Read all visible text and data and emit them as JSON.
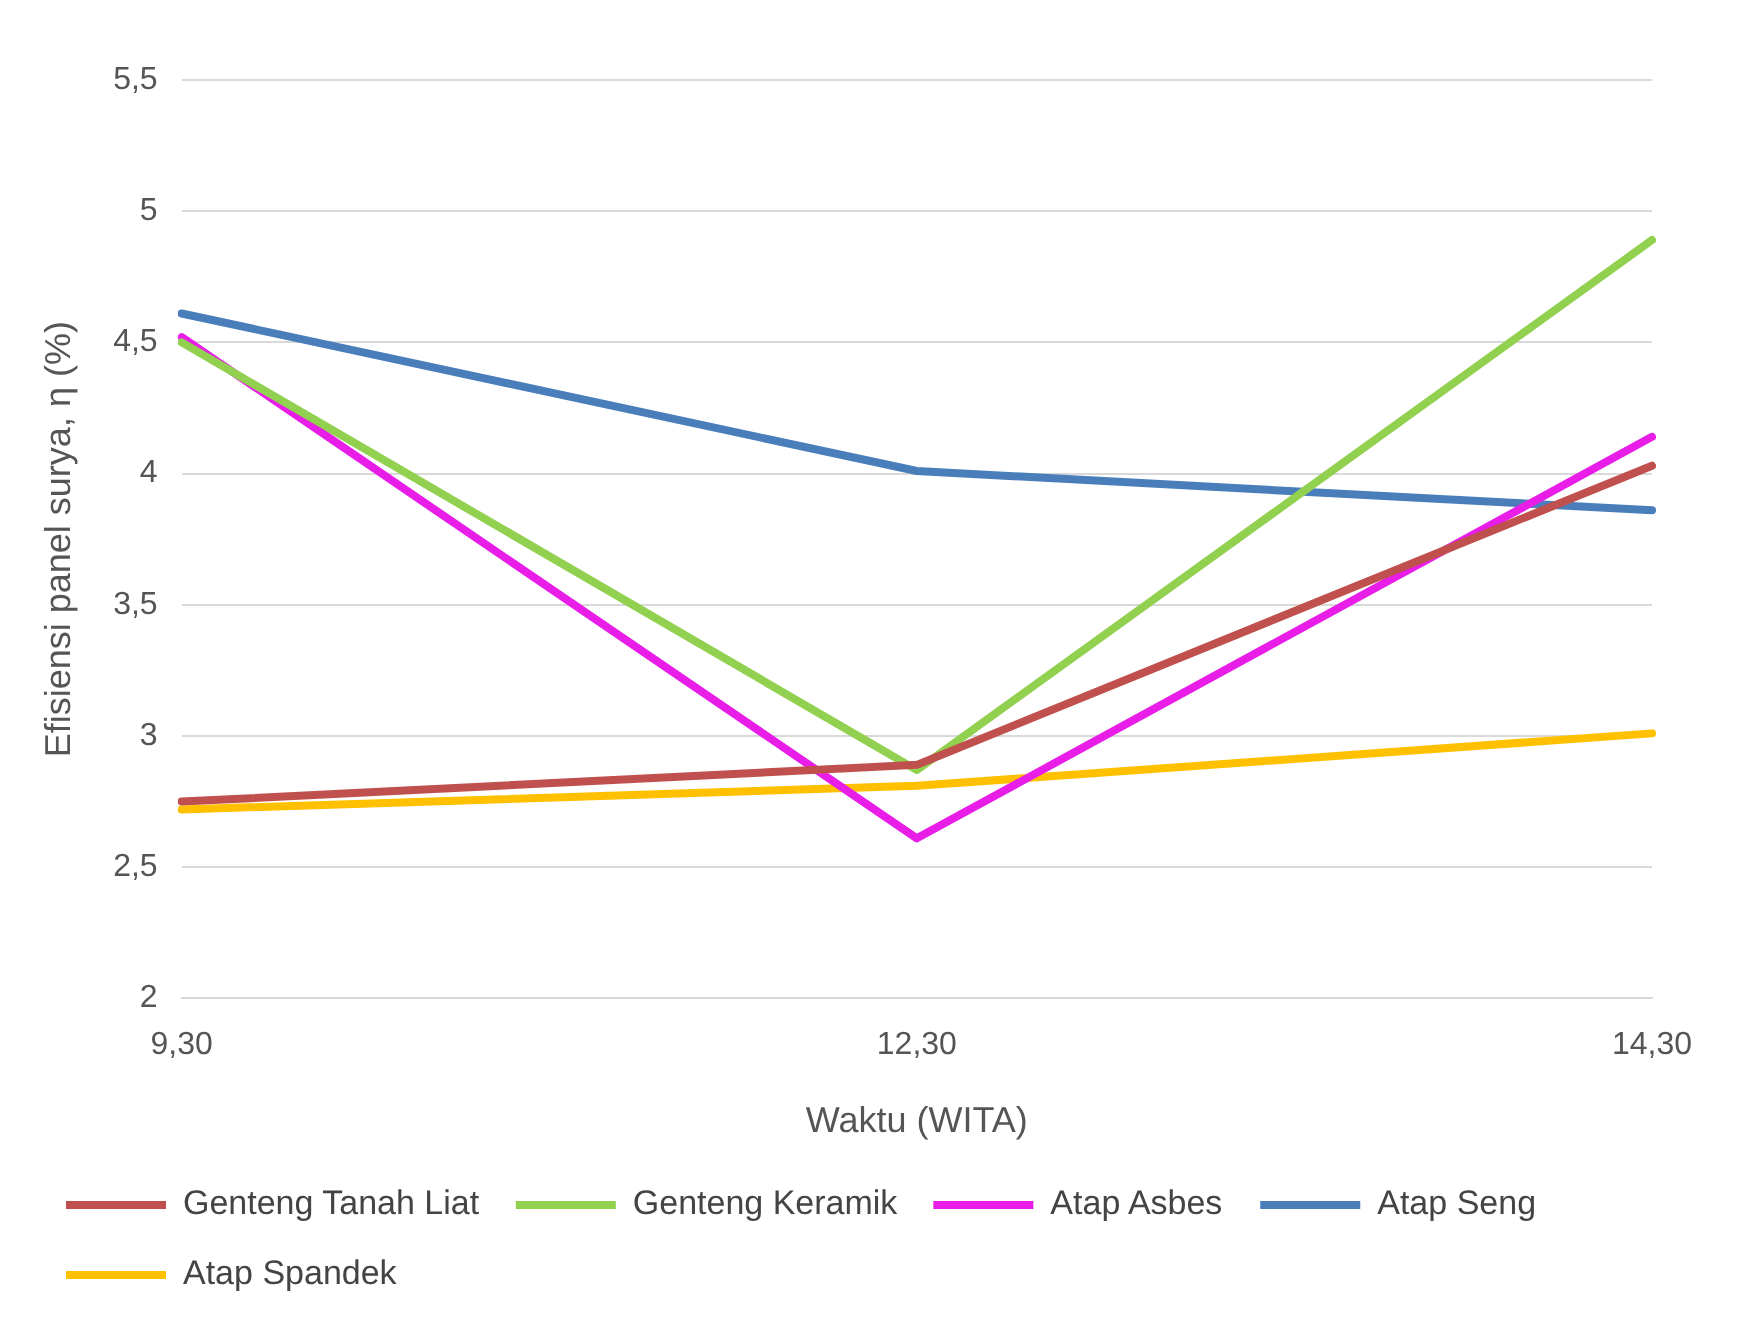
{
  "chart_data": {
    "type": "line",
    "xlabel": "Waktu (WITA)",
    "ylabel": "Efisiensi panel surya, η (%)",
    "categories": [
      "9,30",
      "12,30",
      "14,30"
    ],
    "series": [
      {
        "name": "Genteng Tanah Liat",
        "color": "#c0504d",
        "values": [
          2.75,
          2.89,
          4.03
        ]
      },
      {
        "name": "Genteng Keramik",
        "color": "#92d050",
        "values": [
          4.5,
          2.87,
          4.89
        ]
      },
      {
        "name": "Atap Asbes",
        "color": "#e81ee8",
        "values": [
          4.52,
          2.61,
          4.14
        ]
      },
      {
        "name": "Atap Seng",
        "color": "#4a7ebb",
        "values": [
          4.61,
          4.01,
          3.86
        ]
      },
      {
        "name": "Atap Spandek",
        "color": "#ffc000",
        "values": [
          2.72,
          2.81,
          3.01
        ]
      }
    ],
    "ylim": [
      2,
      5.5
    ],
    "yticks": [
      2,
      {
        "value": 2.5,
        "label": "2,5"
      },
      3,
      {
        "value": 3.5,
        "label": "3,5"
      },
      4,
      {
        "value": 4.5,
        "label": "4,5"
      },
      5,
      {
        "value": 5.5,
        "label": "5,5"
      }
    ],
    "grid": "y",
    "legend": "bottom",
    "marker": "none",
    "line_style": "solid"
  }
}
